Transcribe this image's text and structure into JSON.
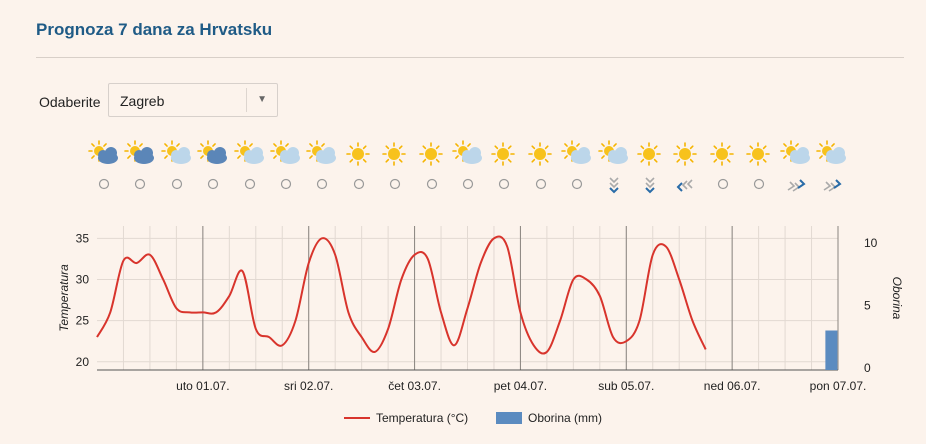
{
  "page": {
    "title": "Prognoza 7 dana za Hrvatsku"
  },
  "selector": {
    "label": "Odaberite",
    "value": "Zagreb"
  },
  "weather_icons": [
    {
      "icon": "sun-cloud-dark-icon",
      "wind": "none"
    },
    {
      "icon": "sun-cloud-dark-icon",
      "wind": "none"
    },
    {
      "icon": "sun-cloud-icon",
      "wind": "none"
    },
    {
      "icon": "sun-cloud-dark-icon",
      "wind": "none"
    },
    {
      "icon": "sun-cloud-icon",
      "wind": "none"
    },
    {
      "icon": "sun-cloud-icon",
      "wind": "none"
    },
    {
      "icon": "sun-cloud-icon",
      "wind": "none"
    },
    {
      "icon": "sun-icon",
      "wind": "none"
    },
    {
      "icon": "sun-icon",
      "wind": "none"
    },
    {
      "icon": "sun-icon",
      "wind": "none"
    },
    {
      "icon": "sun-cloud-icon",
      "wind": "none"
    },
    {
      "icon": "sun-icon",
      "wind": "none"
    },
    {
      "icon": "sun-icon",
      "wind": "none"
    },
    {
      "icon": "sun-cloud-icon",
      "wind": "none"
    },
    {
      "icon": "sun-cloud-icon",
      "wind": "down"
    },
    {
      "icon": "sun-icon",
      "wind": "down"
    },
    {
      "icon": "sun-icon",
      "wind": "southwest"
    },
    {
      "icon": "sun-icon",
      "wind": "none"
    },
    {
      "icon": "sun-icon",
      "wind": "none"
    },
    {
      "icon": "sun-cloud-icon",
      "wind": "northeast"
    },
    {
      "icon": "sun-cloud-icon",
      "wind": "northeast"
    }
  ],
  "chart_data": {
    "type": "line",
    "x_ticks": [
      "uto 01.07.",
      "sri 02.07.",
      "čet 03.07.",
      "pet 04.07.",
      "sub 05.07.",
      "ned 06.07.",
      "pon 07.07."
    ],
    "ylabel_left": "Temperatura",
    "ylabel_right": "Oborina",
    "y_left_ticks": [
      20,
      25,
      30,
      35
    ],
    "y_right_ticks": [
      0,
      5,
      10
    ],
    "y_left_range": [
      19,
      36.5
    ],
    "y_right_range": [
      0,
      10
    ],
    "x_range": [
      0,
      168
    ],
    "grid": true,
    "legend_position": "bottom",
    "series": [
      {
        "name": "Temperatura (°C)",
        "type": "line",
        "color": "#d8342c",
        "x": [
          0,
          3,
          6,
          9,
          12,
          15,
          18,
          21,
          24,
          27,
          30,
          33,
          36,
          39,
          42,
          45,
          48,
          51,
          54,
          57,
          60,
          63,
          66,
          69,
          72,
          75,
          78,
          81,
          84,
          87,
          90,
          93,
          96,
          99,
          102,
          105,
          108,
          111,
          114,
          117,
          120,
          123,
          126,
          129,
          132,
          135,
          138,
          141,
          144,
          147,
          150,
          153,
          156,
          159,
          162,
          165,
          168
        ],
        "y": [
          23,
          26,
          32.3,
          32,
          33,
          30,
          26.5,
          26,
          26,
          26,
          28,
          31,
          24,
          23,
          22,
          25,
          32,
          35,
          33,
          26,
          23,
          21.2,
          24,
          30,
          33,
          32.5,
          26,
          22,
          26.5,
          32,
          35,
          34,
          26,
          22,
          21.2,
          25,
          30,
          30,
          28,
          23,
          22.5,
          25,
          33,
          34,
          30,
          25,
          21.5,
          null,
          null,
          null,
          null,
          null,
          null,
          null,
          null,
          null,
          null
        ]
      },
      {
        "name": "Oborina (mm)",
        "type": "bar",
        "color": "#5b8bc0",
        "x": [
          166.5
        ],
        "y": [
          3
        ]
      }
    ]
  },
  "legend": {
    "items": [
      "Temperatura (°C)",
      "Oborina (mm)"
    ]
  }
}
